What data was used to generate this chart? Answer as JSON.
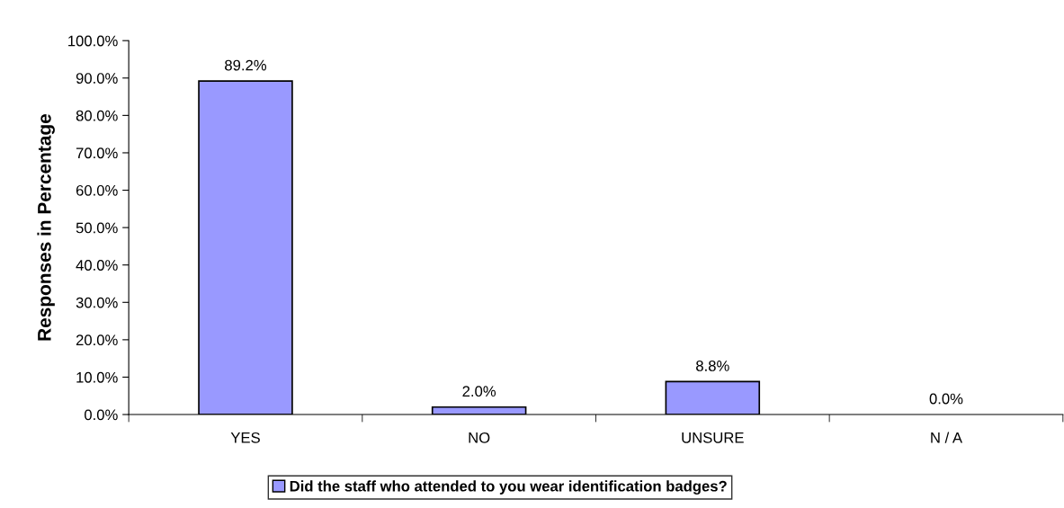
{
  "chart_data": {
    "type": "bar",
    "ylabel": "Responses in Percentage",
    "categories": [
      "YES",
      "NO",
      "UNSURE",
      "N / A"
    ],
    "series": [
      {
        "name": "Did the staff who attended to you wear identification badges?",
        "color": "#9999ff",
        "values": [
          89.2,
          2.0,
          8.8,
          0.0
        ],
        "value_labels": [
          "89.2%",
          "2.0%",
          "8.8%",
          "0.0%"
        ]
      }
    ],
    "ylim": [
      0,
      100
    ],
    "yticks": [
      {
        "value": 0,
        "label": "0.0%"
      },
      {
        "value": 10,
        "label": "10.0%"
      },
      {
        "value": 20,
        "label": "20.0%"
      },
      {
        "value": 30,
        "label": "30.0%"
      },
      {
        "value": 40,
        "label": "40.0%"
      },
      {
        "value": 50,
        "label": "50.0%"
      },
      {
        "value": 60,
        "label": "60.0%"
      },
      {
        "value": 70,
        "label": "70.0%"
      },
      {
        "value": 80,
        "label": "80.0%"
      },
      {
        "value": 90,
        "label": "90.0%"
      },
      {
        "value": 100,
        "label": "100.0%"
      }
    ],
    "grid": false,
    "legend": "bottom"
  }
}
